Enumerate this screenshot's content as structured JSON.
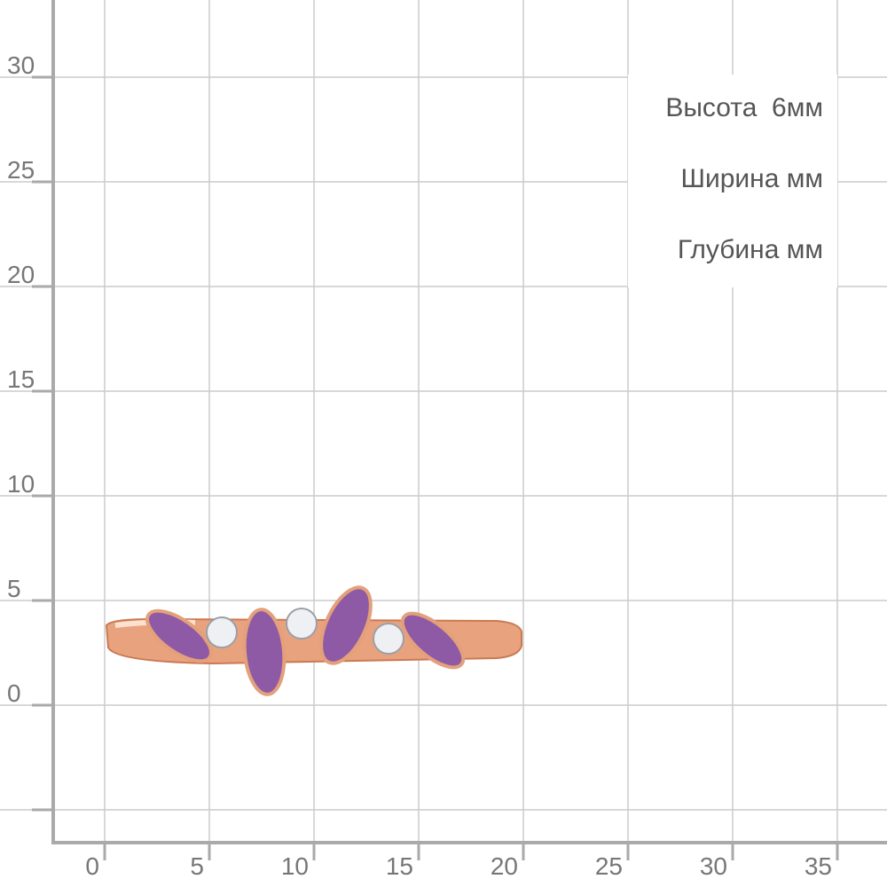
{
  "y_axis": {
    "labels": [
      "0",
      "5",
      "10",
      "15",
      "20",
      "25",
      "30"
    ]
  },
  "x_axis": {
    "labels": [
      "0",
      "5",
      "10",
      "15",
      "20",
      "25",
      "30",
      "35"
    ]
  },
  "dimensions": [
    "Высота  6мм",
    "Ширина мм",
    "Глубина мм"
  ]
}
